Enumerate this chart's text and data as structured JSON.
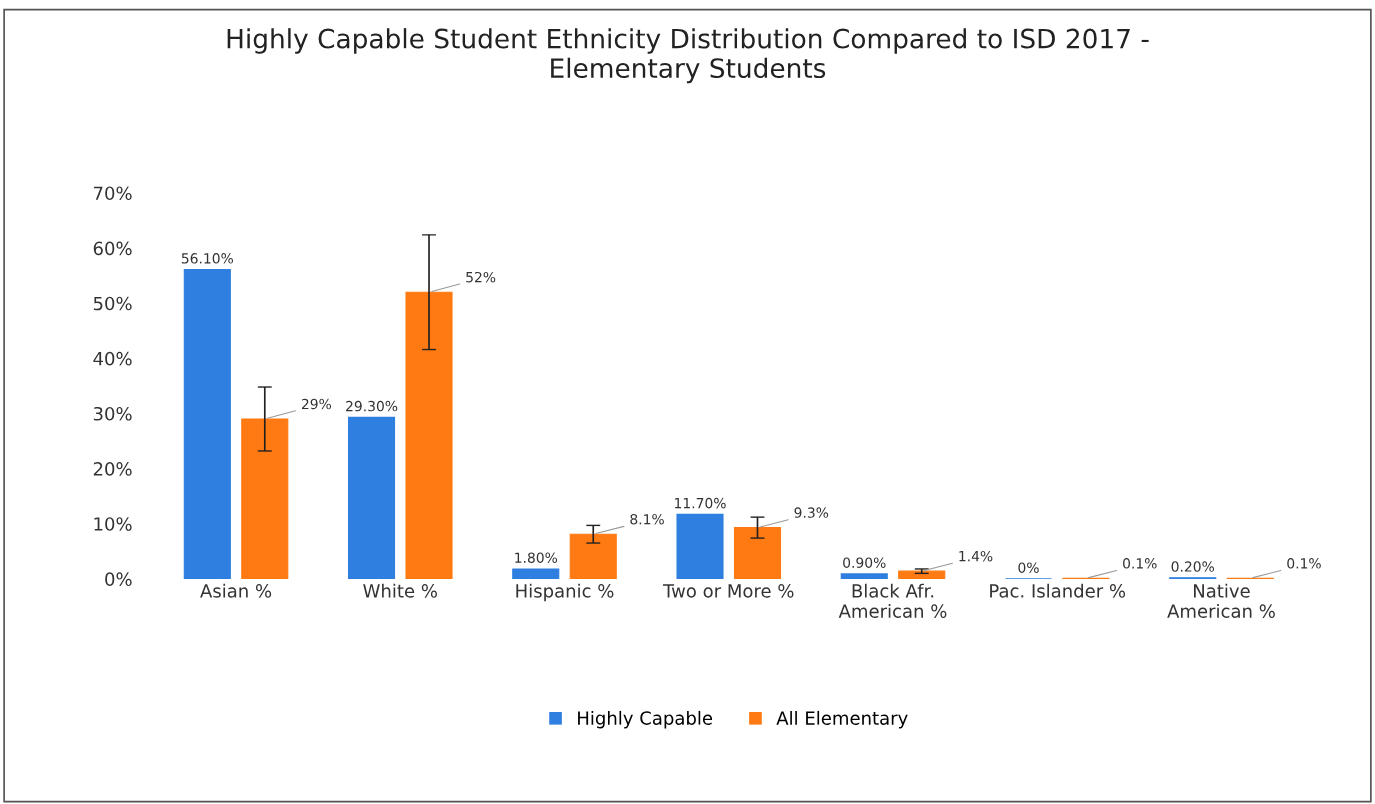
{
  "chart_data": {
    "type": "bar",
    "title": "Highly Capable Student Ethnicity Distribution Compared to ISD 2017 -\nElementary Students",
    "categories": [
      "Asian %",
      "White %",
      "Hispanic %",
      "Two or More %",
      "Black Afr.\nAmerican %",
      "Pac. Islander %",
      "Native\nAmerican %"
    ],
    "series": [
      {
        "name": "Highly Capable",
        "color": "#2e7fe0",
        "values": [
          56.1,
          29.3,
          1.8,
          11.7,
          0.9,
          0,
          0.2
        ],
        "value_labels": [
          "56.10%",
          "29.30%",
          "1.80%",
          "11.70%",
          "0.90%",
          "0%",
          "0.20%"
        ]
      },
      {
        "name": "All Elementary",
        "color": "#ff7a12",
        "values": [
          29,
          52,
          8.1,
          9.3,
          1.4,
          0.1,
          0.1
        ],
        "value_labels": [
          "29%",
          "52%",
          "8.1%",
          "9.3%",
          "1.4%",
          "0.1%",
          "0.1%"
        ],
        "errors": [
          5.8,
          10.4,
          1.6,
          1.9,
          0.4,
          null,
          null
        ]
      }
    ],
    "ylim": [
      0,
      70
    ],
    "yticks": [
      {
        "value": 0,
        "label": "0%"
      },
      {
        "value": 10,
        "label": "10%"
      },
      {
        "value": 20,
        "label": "20%"
      },
      {
        "value": 30,
        "label": "30%"
      },
      {
        "value": 40,
        "label": "40%"
      },
      {
        "value": 50,
        "label": "50%"
      },
      {
        "value": 60,
        "label": "60%"
      },
      {
        "value": 70,
        "label": "70%"
      }
    ],
    "grid": false,
    "legend": "bottom"
  }
}
